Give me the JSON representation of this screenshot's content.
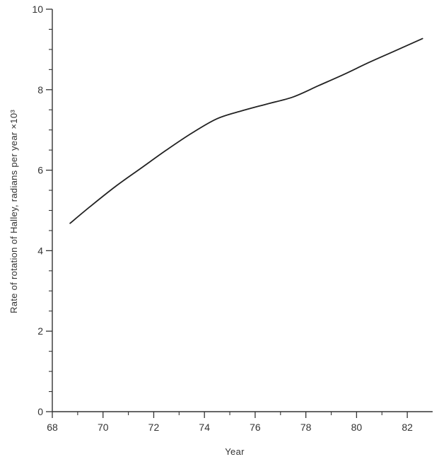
{
  "chart_data": {
    "type": "line",
    "title": "",
    "xlabel": "Year",
    "ylabel": "Rate of rotation of Halley, radians per year ×10³",
    "xlim": [
      68,
      83
    ],
    "ylim": [
      0,
      10
    ],
    "x_ticks": [
      68,
      70,
      72,
      74,
      76,
      78,
      80,
      82
    ],
    "x_tick_labels": [
      "68",
      "70",
      "72",
      "74",
      "76",
      "78",
      "80",
      "82"
    ],
    "x_minor_ticks": [
      69,
      71,
      73,
      75,
      77,
      79,
      81
    ],
    "y_ticks": [
      0,
      2,
      4,
      6,
      8,
      10
    ],
    "y_tick_labels": [
      "0",
      "2",
      "4",
      "6",
      "8",
      "10"
    ],
    "y_minor_step": 0.5,
    "grid": false,
    "line_color": "#222222",
    "series": [
      {
        "x": [
          68.7,
          69.5,
          70.5,
          71.5,
          72.5,
          73.5,
          74.5,
          75.5,
          76.5,
          77.5,
          78.5,
          79.5,
          80.5,
          81.5,
          82.6
        ],
        "y": [
          4.68,
          5.1,
          5.6,
          6.05,
          6.5,
          6.92,
          7.28,
          7.48,
          7.65,
          7.82,
          8.1,
          8.38,
          8.68,
          8.96,
          9.27
        ]
      }
    ]
  }
}
